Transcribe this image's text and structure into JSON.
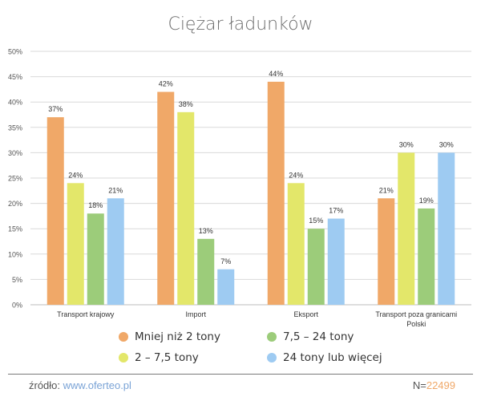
{
  "chart_data": {
    "type": "bar",
    "title": "Ciężar ładunków",
    "categories": [
      "Transport krajowy",
      "Import",
      "Eksport",
      "Transport poza granicami Polski"
    ],
    "series": [
      {
        "name": "Mniej niż 2 tony",
        "color": "#f0a868",
        "values": [
          37,
          42,
          44,
          21
        ]
      },
      {
        "name": "2 – 7,5 tony",
        "color": "#e3e76a",
        "values": [
          24,
          38,
          24,
          30
        ]
      },
      {
        "name": "7,5 – 24 tony",
        "color": "#9ccc7a",
        "values": [
          18,
          13,
          15,
          19
        ]
      },
      {
        "name": "24 tony lub więcej",
        "color": "#9ecbf2",
        "values": [
          21,
          7,
          17,
          30
        ]
      }
    ],
    "data_labels": [
      [
        "37%",
        "24%",
        "18%",
        "21%"
      ],
      [
        "42%",
        "38%",
        "13%",
        "7%"
      ],
      [
        "44%",
        "24%",
        "15%",
        "17%"
      ],
      [
        "21%",
        "30%",
        "19%",
        "30%"
      ]
    ],
    "category_labels": [
      [
        "Transport krajowy"
      ],
      [
        "Import"
      ],
      [
        "Eksport"
      ],
      [
        "Transport poza granicami",
        "Polski"
      ]
    ],
    "ylim": [
      0,
      50
    ],
    "yticks": [
      "0%",
      "5%",
      "10%",
      "15%",
      "20%",
      "25%",
      "30%",
      "35%",
      "40%",
      "45%",
      "50%"
    ],
    "grid": true,
    "legend_position": "bottom"
  },
  "legend": {
    "item1": "Mniej niż 2 tony",
    "item2": "7,5 – 24 tony",
    "item3": "2 – 7,5 tony",
    "item4": "24 tony lub więcej"
  },
  "footer": {
    "source_label": "źródło:",
    "source_link": "www.oferteo.pl",
    "n_prefix": "N=",
    "n_value": "22499"
  }
}
